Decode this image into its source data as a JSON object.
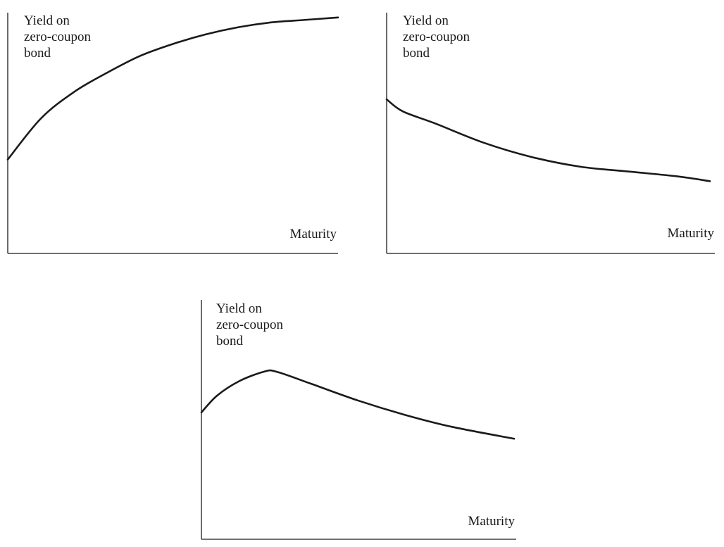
{
  "chart_data": [
    {
      "type": "line",
      "ylabel": [
        "Yield on",
        "zero-coupon",
        "bond"
      ],
      "xlabel": "Maturity",
      "xlim": [
        0,
        1
      ],
      "ylim": [
        0,
        1
      ],
      "x": [
        0,
        0.1,
        0.2,
        0.3,
        0.4,
        0.5,
        0.6,
        0.7,
        0.8,
        0.9,
        1.0
      ],
      "series": [
        {
          "values": [
            0.39,
            0.56,
            0.67,
            0.75,
            0.82,
            0.87,
            0.91,
            0.94,
            0.96,
            0.97,
            0.98
          ]
        }
      ]
    },
    {
      "type": "line",
      "ylabel": [
        "Yield on",
        "zero-coupon",
        "bond"
      ],
      "xlabel": "Maturity",
      "xlim": [
        0,
        1
      ],
      "ylim": [
        0,
        1
      ],
      "x": [
        0,
        0.05,
        0.15,
        0.3,
        0.45,
        0.6,
        0.75,
        0.9,
        1.0
      ],
      "series": [
        {
          "values": [
            0.64,
            0.59,
            0.54,
            0.46,
            0.4,
            0.36,
            0.34,
            0.32,
            0.3
          ]
        }
      ]
    },
    {
      "type": "line",
      "ylabel": [
        "Yield on",
        "zero-coupon",
        "bond"
      ],
      "xlabel": "Maturity",
      "xlim": [
        0,
        1
      ],
      "ylim": [
        0,
        1
      ],
      "x": [
        0,
        0.05,
        0.12,
        0.2,
        0.24,
        0.35,
        0.5,
        0.65,
        0.8,
        1.0
      ],
      "series": [
        {
          "values": [
            0.53,
            0.6,
            0.66,
            0.7,
            0.7,
            0.65,
            0.58,
            0.52,
            0.47,
            0.42
          ]
        }
      ]
    }
  ]
}
